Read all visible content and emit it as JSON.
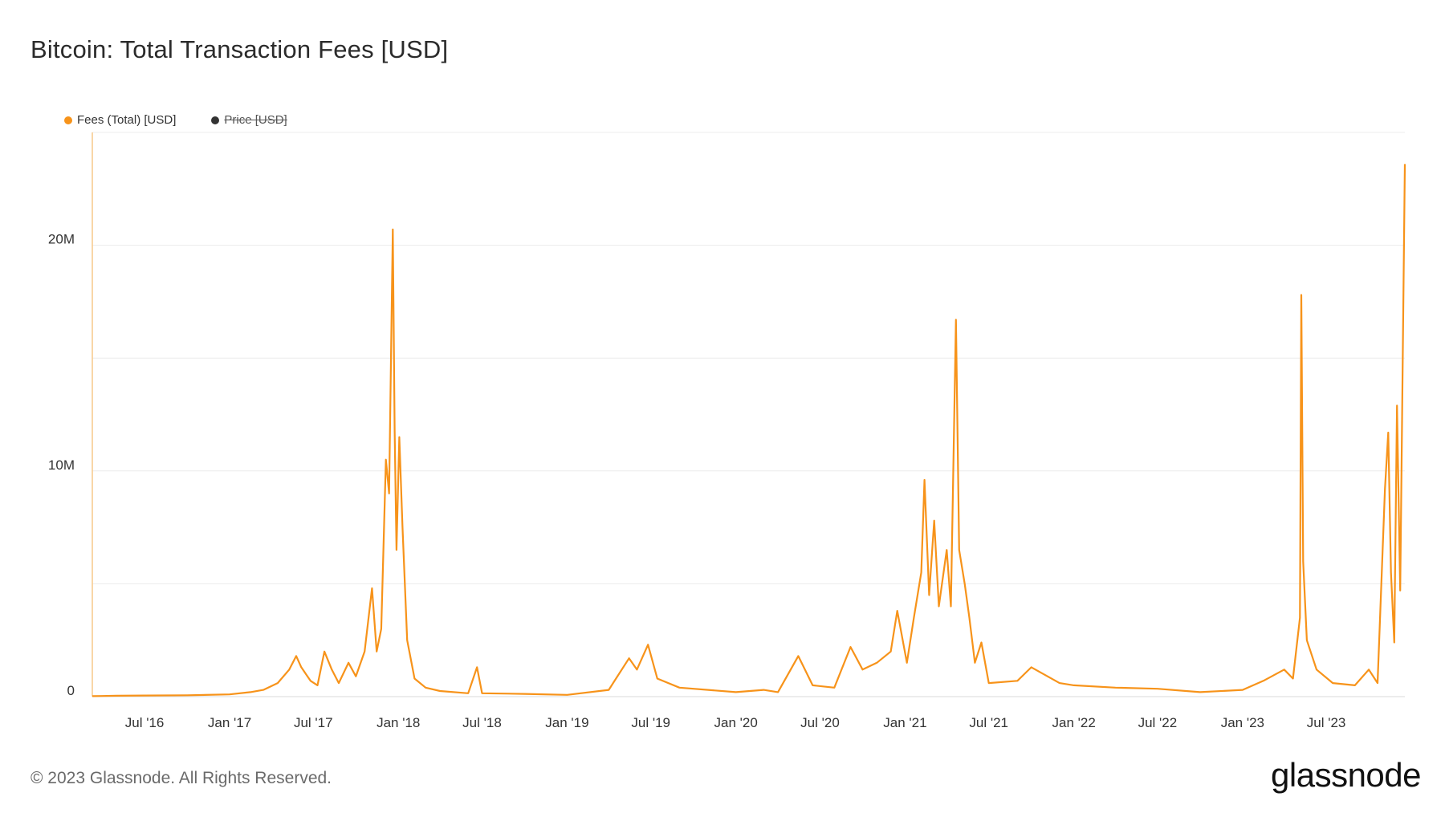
{
  "title": "Bitcoin: Total Transaction Fees [USD]",
  "legend": [
    {
      "label": "Fees (Total) [USD]",
      "color": "#f7931a",
      "active": true
    },
    {
      "label": "Price [USD]",
      "color": "#333333",
      "active": false
    }
  ],
  "footer": "© 2023 Glassnode. All Rights Reserved.",
  "logo": "glassnode",
  "chart_data": {
    "type": "line",
    "title": "Bitcoin: Total Transaction Fees [USD]",
    "xlabel": "",
    "ylabel": "",
    "x_tick_labels": [
      "Jul '16",
      "Jan '17",
      "Jul '17",
      "Jan '18",
      "Jul '18",
      "Jan '19",
      "Jul '19",
      "Jan '20",
      "Jul '20",
      "Jan '21",
      "Jul '21",
      "Jan '22",
      "Jul '22",
      "Jan '23",
      "Jul '23"
    ],
    "y_tick_labels": [
      "0",
      "10M",
      "20M"
    ],
    "ylim": [
      0,
      25000000
    ],
    "xlim": [
      "2016-03-10",
      "2023-12-18"
    ],
    "grid": true,
    "legend_position": "top-left",
    "series": [
      {
        "name": "Fees (Total) [USD]",
        "color": "#f7931a",
        "points": [
          [
            "2016-03-10",
            20000
          ],
          [
            "2016-05-01",
            40000
          ],
          [
            "2016-07-01",
            50000
          ],
          [
            "2016-10-01",
            60000
          ],
          [
            "2017-01-01",
            100000
          ],
          [
            "2017-02-15",
            200000
          ],
          [
            "2017-03-15",
            300000
          ],
          [
            "2017-04-15",
            600000
          ],
          [
            "2017-05-10",
            1200000
          ],
          [
            "2017-05-25",
            1800000
          ],
          [
            "2017-06-05",
            1300000
          ],
          [
            "2017-06-25",
            700000
          ],
          [
            "2017-07-10",
            500000
          ],
          [
            "2017-07-25",
            2000000
          ],
          [
            "2017-08-10",
            1200000
          ],
          [
            "2017-08-25",
            600000
          ],
          [
            "2017-09-15",
            1500000
          ],
          [
            "2017-10-01",
            900000
          ],
          [
            "2017-10-20",
            2000000
          ],
          [
            "2017-11-05",
            4800000
          ],
          [
            "2017-11-15",
            2000000
          ],
          [
            "2017-11-25",
            3000000
          ],
          [
            "2017-12-05",
            10500000
          ],
          [
            "2017-12-12",
            9000000
          ],
          [
            "2017-12-20",
            20700000
          ],
          [
            "2017-12-24",
            11800000
          ],
          [
            "2017-12-28",
            6500000
          ],
          [
            "2018-01-03",
            11500000
          ],
          [
            "2018-01-10",
            7500000
          ],
          [
            "2018-01-20",
            2500000
          ],
          [
            "2018-02-05",
            800000
          ],
          [
            "2018-03-01",
            400000
          ],
          [
            "2018-04-01",
            250000
          ],
          [
            "2018-06-01",
            150000
          ],
          [
            "2018-06-20",
            1300000
          ],
          [
            "2018-07-01",
            150000
          ],
          [
            "2018-10-01",
            120000
          ],
          [
            "2019-01-01",
            80000
          ],
          [
            "2019-04-01",
            300000
          ],
          [
            "2019-05-15",
            1700000
          ],
          [
            "2019-06-01",
            1200000
          ],
          [
            "2019-06-25",
            2300000
          ],
          [
            "2019-07-15",
            800000
          ],
          [
            "2019-09-01",
            400000
          ],
          [
            "2020-01-01",
            200000
          ],
          [
            "2020-03-01",
            300000
          ],
          [
            "2020-04-01",
            200000
          ],
          [
            "2020-05-15",
            1800000
          ],
          [
            "2020-06-15",
            500000
          ],
          [
            "2020-08-01",
            400000
          ],
          [
            "2020-09-05",
            2200000
          ],
          [
            "2020-10-01",
            1200000
          ],
          [
            "2020-11-01",
            1500000
          ],
          [
            "2020-12-01",
            2000000
          ],
          [
            "2020-12-15",
            3800000
          ],
          [
            "2021-01-05",
            1500000
          ],
          [
            "2021-01-20",
            3500000
          ],
          [
            "2021-02-05",
            5500000
          ],
          [
            "2021-02-12",
            9600000
          ],
          [
            "2021-02-22",
            4500000
          ],
          [
            "2021-03-05",
            7800000
          ],
          [
            "2021-03-15",
            4000000
          ],
          [
            "2021-04-01",
            6500000
          ],
          [
            "2021-04-10",
            4000000
          ],
          [
            "2021-04-21",
            16700000
          ],
          [
            "2021-04-28",
            6500000
          ],
          [
            "2021-05-10",
            5000000
          ],
          [
            "2021-05-20",
            3500000
          ],
          [
            "2021-06-01",
            1500000
          ],
          [
            "2021-06-15",
            2400000
          ],
          [
            "2021-07-01",
            600000
          ],
          [
            "2021-09-01",
            700000
          ],
          [
            "2021-10-01",
            1300000
          ],
          [
            "2021-12-01",
            600000
          ],
          [
            "2022-01-01",
            500000
          ],
          [
            "2022-04-01",
            400000
          ],
          [
            "2022-07-01",
            350000
          ],
          [
            "2022-10-01",
            200000
          ],
          [
            "2023-01-01",
            300000
          ],
          [
            "2023-02-15",
            700000
          ],
          [
            "2023-04-01",
            1200000
          ],
          [
            "2023-04-20",
            800000
          ],
          [
            "2023-05-05",
            3500000
          ],
          [
            "2023-05-08",
            17800000
          ],
          [
            "2023-05-12",
            6000000
          ],
          [
            "2023-05-20",
            2500000
          ],
          [
            "2023-06-10",
            1200000
          ],
          [
            "2023-07-15",
            600000
          ],
          [
            "2023-09-01",
            500000
          ],
          [
            "2023-10-01",
            1200000
          ],
          [
            "2023-10-20",
            600000
          ],
          [
            "2023-11-05",
            9200000
          ],
          [
            "2023-11-12",
            11700000
          ],
          [
            "2023-11-18",
            5500000
          ],
          [
            "2023-11-25",
            2400000
          ],
          [
            "2023-12-01",
            12900000
          ],
          [
            "2023-12-08",
            4700000
          ],
          [
            "2023-12-18",
            23600000
          ]
        ]
      }
    ]
  }
}
